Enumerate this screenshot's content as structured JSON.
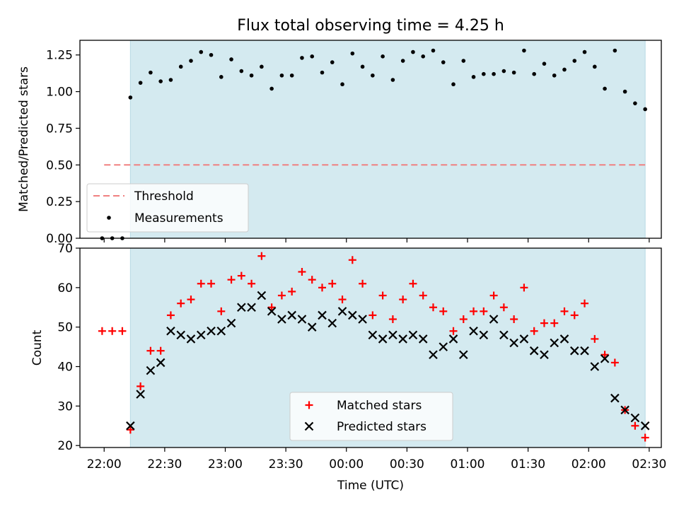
{
  "title": "Flux total observing time = 4.25 h",
  "colors": {
    "shade": "#d4eaf0",
    "shade_edge": "#b7d9e4",
    "threshold": "#f08080",
    "measurement": "#000000",
    "matched": "#ff0000",
    "predicted": "#000000"
  },
  "chart_data": [
    {
      "type": "scatter",
      "ylabel": "Matched/Predicted stars",
      "ylim": [
        0,
        1.35
      ],
      "xlim_minutes": [
        -12,
        276
      ],
      "y_ticks": [
        "0.00",
        "0.25",
        "0.50",
        "0.75",
        "1.00",
        "1.25"
      ],
      "shaded_region": {
        "start": "22:13",
        "end": "02:28"
      },
      "legend": {
        "position": "lower-left",
        "entries": [
          "Threshold",
          "Measurements"
        ]
      },
      "threshold": {
        "name": "Threshold",
        "value": 0.5,
        "x_start": "22:00",
        "x_end": "02:28"
      },
      "measurements": {
        "name": "Measurements",
        "x": [
          "21:59",
          "22:04",
          "22:09",
          "22:13",
          "22:18",
          "22:23",
          "22:28",
          "22:33",
          "22:38",
          "22:43",
          "22:48",
          "22:53",
          "22:58",
          "23:03",
          "23:08",
          "23:13",
          "23:18",
          "23:23",
          "23:28",
          "23:33",
          "23:38",
          "23:43",
          "23:48",
          "23:53",
          "23:58",
          "00:03",
          "00:08",
          "00:13",
          "00:18",
          "00:23",
          "00:28",
          "00:33",
          "00:38",
          "00:43",
          "00:48",
          "00:53",
          "00:58",
          "01:03",
          "01:08",
          "01:13",
          "01:18",
          "01:23",
          "01:28",
          "01:33",
          "01:38",
          "01:43",
          "01:48",
          "01:53",
          "01:58",
          "02:03",
          "02:08",
          "02:13",
          "02:18",
          "02:23",
          "02:28"
        ],
        "y": [
          0.0,
          0.0,
          0.0,
          0.96,
          1.06,
          1.13,
          1.07,
          1.08,
          1.17,
          1.21,
          1.27,
          1.25,
          1.1,
          1.22,
          1.14,
          1.11,
          1.17,
          1.02,
          1.11,
          1.11,
          1.23,
          1.24,
          1.13,
          1.2,
          1.05,
          1.26,
          1.17,
          1.11,
          1.24,
          1.08,
          1.21,
          1.27,
          1.24,
          1.28,
          1.2,
          1.05,
          1.21,
          1.1,
          1.12,
          1.12,
          1.14,
          1.13,
          1.28,
          1.12,
          1.19,
          1.11,
          1.15,
          1.21,
          1.27,
          1.17,
          1.02,
          1.28,
          1.0,
          0.92,
          0.88
        ]
      }
    },
    {
      "type": "scatter",
      "xlabel": "Time (UTC)",
      "ylabel": "Count",
      "ylim": [
        19.5,
        70
      ],
      "xlim_minutes": [
        -12,
        276
      ],
      "y_ticks": [
        "20",
        "30",
        "40",
        "50",
        "60",
        "70"
      ],
      "x_ticks": [
        "22:00",
        "22:30",
        "23:00",
        "23:30",
        "00:00",
        "00:30",
        "01:00",
        "01:30",
        "02:00",
        "02:30"
      ],
      "shaded_region": {
        "start": "22:13",
        "end": "02:28"
      },
      "legend": {
        "position": "lower-center",
        "entries": [
          "Matched stars",
          "Predicted stars"
        ]
      },
      "x": [
        "21:59",
        "22:04",
        "22:09",
        "22:13",
        "22:18",
        "22:23",
        "22:28",
        "22:33",
        "22:38",
        "22:43",
        "22:48",
        "22:53",
        "22:58",
        "23:03",
        "23:08",
        "23:13",
        "23:18",
        "23:23",
        "23:28",
        "23:33",
        "23:38",
        "23:43",
        "23:48",
        "23:53",
        "23:58",
        "00:03",
        "00:08",
        "00:13",
        "00:18",
        "00:23",
        "00:28",
        "00:33",
        "00:38",
        "00:43",
        "00:48",
        "00:53",
        "00:58",
        "01:03",
        "01:08",
        "01:13",
        "01:18",
        "01:23",
        "01:28",
        "01:33",
        "01:38",
        "01:43",
        "01:48",
        "01:53",
        "01:58",
        "02:03",
        "02:08",
        "02:13",
        "02:18",
        "02:23",
        "02:28"
      ],
      "series": [
        {
          "name": "Matched stars",
          "marker": "+",
          "values": [
            49,
            49,
            49,
            24,
            35,
            44,
            44,
            53,
            56,
            57,
            61,
            61,
            54,
            62,
            63,
            61,
            68,
            55,
            58,
            59,
            64,
            62,
            60,
            61,
            57,
            67,
            61,
            53,
            58,
            52,
            57,
            61,
            58,
            55,
            54,
            49,
            52,
            54,
            54,
            58,
            55,
            52,
            60,
            49,
            51,
            51,
            54,
            53,
            56,
            47,
            43,
            41,
            29,
            25,
            22
          ]
        },
        {
          "name": "Predicted stars",
          "marker": "x",
          "values": [
            null,
            null,
            null,
            25,
            33,
            39,
            41,
            49,
            48,
            47,
            48,
            49,
            49,
            51,
            55,
            55,
            58,
            54,
            52,
            53,
            52,
            50,
            53,
            51,
            54,
            53,
            52,
            48,
            47,
            48,
            47,
            48,
            47,
            43,
            45,
            47,
            43,
            49,
            48,
            52,
            48,
            46,
            47,
            44,
            43,
            46,
            47,
            44,
            44,
            40,
            42,
            32,
            29,
            27,
            25
          ]
        }
      ]
    }
  ]
}
